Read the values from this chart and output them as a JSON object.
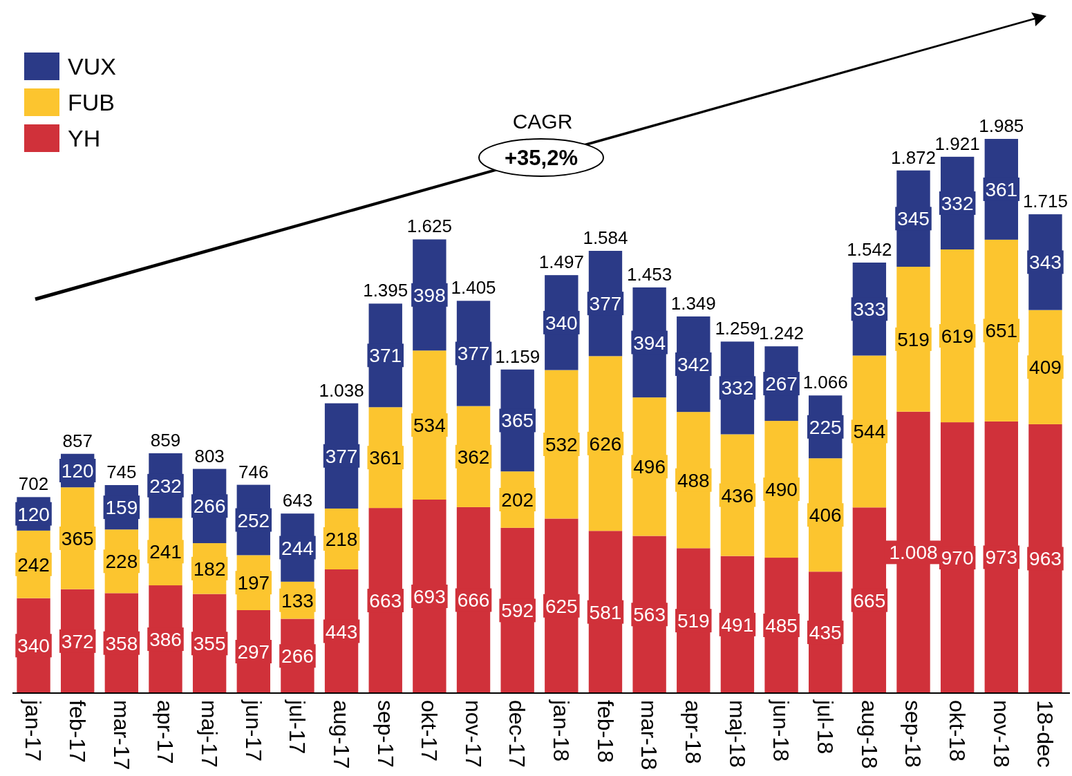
{
  "chart_data": {
    "type": "bar",
    "stacked": true,
    "legend": "top left",
    "annotations": [
      "CAGR",
      "+35,2%"
    ],
    "categories": [
      "jan-17",
      "feb-17",
      "mar-17",
      "apr-17",
      "maj-17",
      "jun-17",
      "jul-17",
      "aug-17",
      "sep-17",
      "okt-17",
      "nov-17",
      "dec-17",
      "jan-18",
      "feb-18",
      "mar-18",
      "apr-18",
      "maj-18",
      "jun-18",
      "jul-18",
      "aug-18",
      "sep-18",
      "okt-18",
      "nov-18",
      "18-dec"
    ],
    "series": [
      {
        "name": "YH",
        "color": "#d0313a",
        "values": [
          340,
          372,
          358,
          386,
          355,
          297,
          266,
          443,
          663,
          693,
          666,
          592,
          625,
          581,
          563,
          519,
          491,
          485,
          435,
          665,
          1008,
          970,
          973,
          963
        ],
        "value_labels": [
          "340",
          "372",
          "358",
          "386",
          "355",
          "297",
          "266",
          "443",
          "663",
          "693",
          "666",
          "592",
          "625",
          "581",
          "563",
          "519",
          "491",
          "485",
          "435",
          "665",
          "1.008",
          "970",
          "973",
          "963"
        ]
      },
      {
        "name": "FUB",
        "color": "#fcc52f",
        "values": [
          242,
          365,
          228,
          241,
          182,
          197,
          133,
          218,
          361,
          534,
          362,
          202,
          532,
          626,
          496,
          488,
          436,
          490,
          406,
          544,
          519,
          619,
          651,
          409
        ],
        "value_labels": [
          "242",
          "365",
          "228",
          "241",
          "182",
          "197",
          "133",
          "218",
          "361",
          "534",
          "362",
          "202",
          "532",
          "626",
          "496",
          "488",
          "436",
          "490",
          "406",
          "544",
          "519",
          "619",
          "651",
          "409"
        ]
      },
      {
        "name": "VUX",
        "color": "#2b3a87",
        "values": [
          120,
          120,
          159,
          232,
          266,
          252,
          244,
          377,
          371,
          398,
          377,
          365,
          340,
          377,
          394,
          342,
          332,
          267,
          225,
          333,
          345,
          332,
          361,
          343
        ],
        "value_labels": [
          "120",
          "120",
          "159",
          "232",
          "266",
          "252",
          "244",
          "377",
          "371",
          "398",
          "377",
          "365",
          "340",
          "377",
          "394",
          "342",
          "332",
          "267",
          "225",
          "333",
          "345",
          "332",
          "361",
          "343"
        ]
      }
    ],
    "totals": [
      "702",
      "857",
      "745",
      "859",
      "803",
      "746",
      "643",
      "1.038",
      "1.395",
      "1.625",
      "1.405",
      "1.159",
      "1.497",
      "1.584",
      "1.453",
      "1.349",
      "1.259",
      "1.242",
      "1.066",
      "1.542",
      "1.872",
      "1.921",
      "1.985",
      "1.715"
    ]
  }
}
